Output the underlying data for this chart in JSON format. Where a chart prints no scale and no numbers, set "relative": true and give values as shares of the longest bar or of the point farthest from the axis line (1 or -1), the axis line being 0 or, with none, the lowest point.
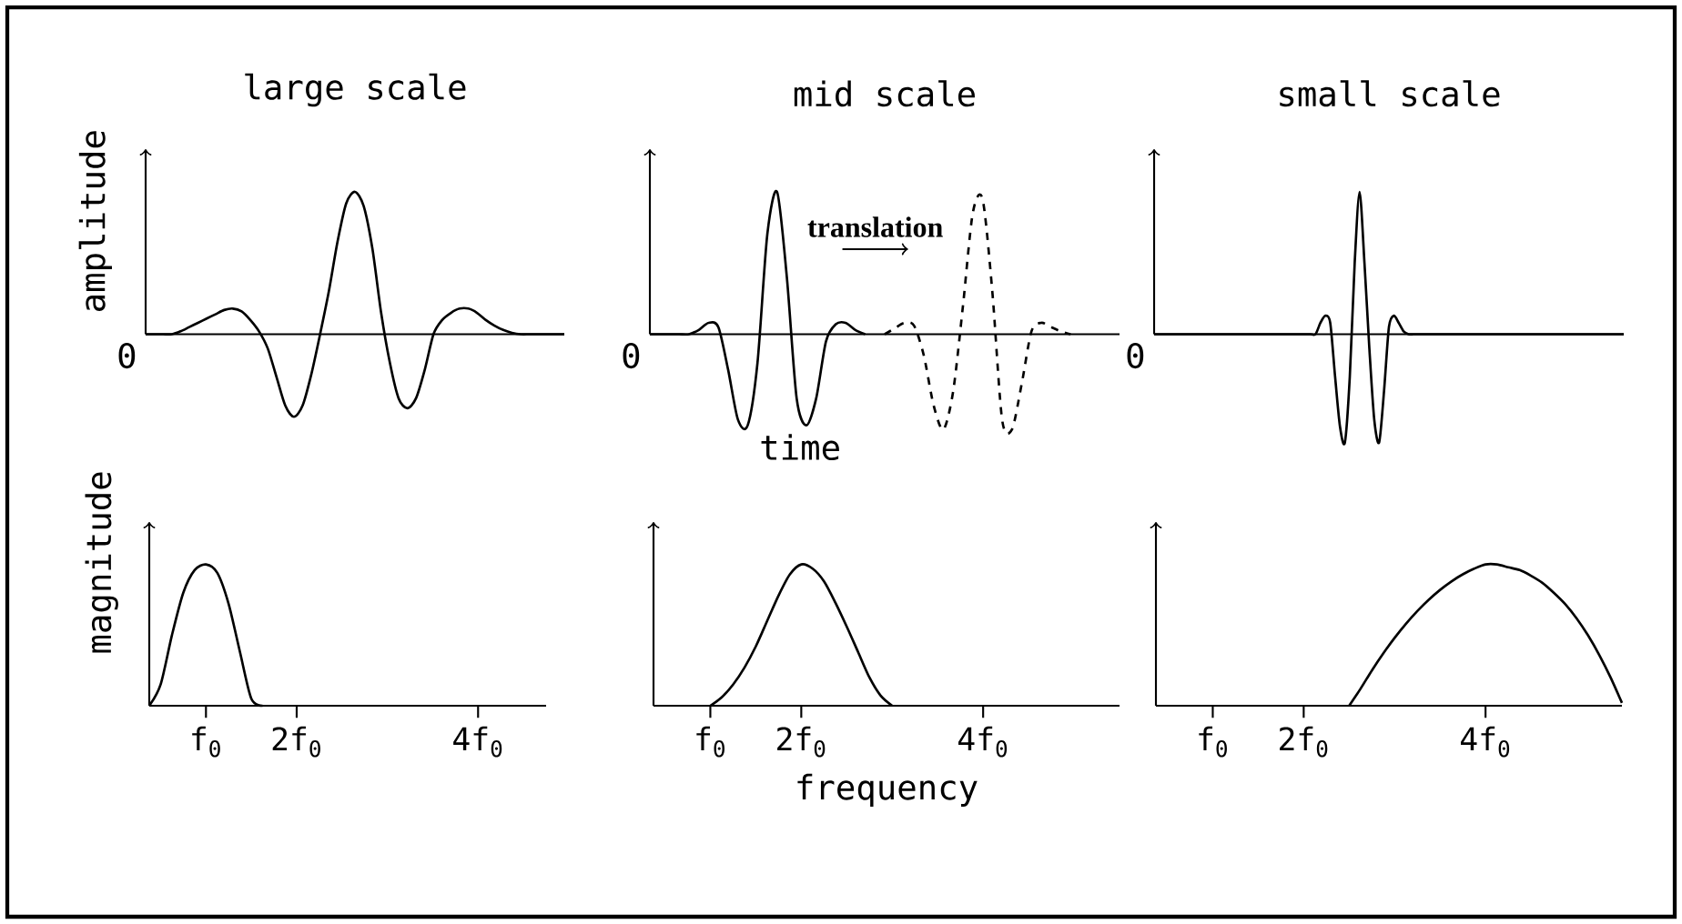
{
  "chart_data": [
    {
      "type": "line",
      "title": "large scale",
      "ylabel": "amplitude",
      "relative": true,
      "annotations": [
        "0"
      ],
      "categories": [
        null,
        null,
        null,
        null,
        null,
        null,
        null,
        null,
        null,
        null,
        null,
        null,
        null,
        null,
        null,
        null,
        null,
        null,
        null,
        null,
        null,
        null,
        null,
        null,
        null,
        null,
        null,
        null,
        null,
        null,
        null,
        null,
        null,
        null,
        null,
        null,
        null,
        null,
        null,
        null,
        null,
        null,
        null,
        null,
        null,
        null,
        null,
        null,
        null
      ],
      "series": [
        {
          "color": "#000000",
          "line_style": "solid",
          "values": [
            0,
            0,
            0,
            0,
            0.02,
            0.05,
            0.08,
            0.11,
            0.14,
            0.17,
            0.18,
            0.16,
            0.1,
            0.02,
            -0.1,
            -0.3,
            -0.5,
            -0.58,
            -0.5,
            -0.28,
            0,
            0.3,
            0.65,
            0.92,
            1,
            0.9,
            0.6,
            0.15,
            -0.2,
            -0.45,
            -0.52,
            -0.45,
            -0.25,
            0,
            0.1,
            0.15,
            0.18,
            0.18,
            0.15,
            0.1,
            0.06,
            0.03,
            0.01,
            0,
            0,
            0,
            0,
            0,
            0
          ]
        }
      ]
    },
    {
      "type": "line",
      "title": "mid scale",
      "xlabel": "time",
      "relative": true,
      "annotations": [
        "0",
        "translation"
      ],
      "categories": [
        null,
        null,
        null,
        null,
        null,
        null,
        null,
        null,
        null,
        null,
        null,
        null,
        null,
        null,
        null,
        null,
        null,
        null,
        null,
        null,
        null,
        null,
        null,
        null,
        null,
        null,
        null,
        null,
        null,
        null,
        null,
        null,
        null,
        null,
        null,
        null,
        null,
        null,
        null,
        null,
        null,
        null,
        null,
        null,
        null,
        null,
        null,
        null,
        null
      ],
      "series": [
        {
          "color": "#000000",
          "line_style": "solid",
          "values": [
            0,
            0,
            0,
            0,
            0,
            0.03,
            0.08,
            0.05,
            -0.25,
            -0.6,
            -0.64,
            -0.2,
            0.7,
            1,
            0.4,
            -0.45,
            -0.64,
            -0.45,
            -0.05,
            0.07,
            0.08,
            0.03,
            0,
            null,
            null,
            null,
            null,
            null,
            null,
            null,
            null,
            null,
            null,
            null,
            null,
            null,
            null,
            null,
            null,
            null,
            null,
            null,
            null,
            null,
            null,
            null,
            null,
            null,
            null
          ]
        },
        {
          "color": "#000000",
          "line_style": "dashed",
          "values": [
            null,
            null,
            null,
            null,
            null,
            null,
            null,
            null,
            null,
            null,
            null,
            null,
            null,
            null,
            null,
            null,
            null,
            null,
            null,
            null,
            null,
            null,
            null,
            null,
            0,
            0.04,
            0.08,
            0.06,
            -0.15,
            -0.5,
            -0.67,
            -0.4,
            0.2,
            0.85,
            0.95,
            0.3,
            -0.6,
            -0.67,
            -0.35,
            0.02,
            0.08,
            0.05,
            0.02,
            0,
            null,
            null,
            null,
            null,
            null
          ]
        }
      ]
    },
    {
      "type": "line",
      "title": "small scale",
      "relative": true,
      "annotations": [
        "0"
      ],
      "categories": [
        null,
        null,
        null,
        null,
        null,
        null,
        null,
        null,
        null,
        null,
        null,
        null,
        null,
        null,
        null,
        null,
        null,
        null,
        null,
        null,
        null,
        null,
        null,
        null,
        null,
        null,
        null,
        null,
        null,
        null,
        null,
        null,
        null,
        null,
        null,
        null,
        null,
        null,
        null,
        null,
        null,
        null,
        null,
        null,
        null,
        null,
        null,
        null,
        null,
        null,
        null,
        null,
        null,
        null,
        null,
        null,
        null,
        null,
        null,
        null,
        null,
        null,
        null,
        null,
        null,
        null,
        null,
        null,
        null,
        null,
        null,
        null,
        null,
        null,
        null,
        null,
        null,
        null,
        null,
        null,
        null,
        null,
        null,
        null,
        null,
        null,
        null,
        null,
        null,
        null,
        null,
        null,
        null,
        null,
        null,
        null,
        null
      ],
      "series": [
        {
          "color": "#000000",
          "line_style": "solid",
          "values": [
            0,
            0,
            0,
            0,
            0,
            0,
            0,
            0,
            0,
            0,
            0,
            0,
            0,
            0,
            0,
            0,
            0,
            0,
            0,
            0,
            0,
            0,
            0,
            0,
            0,
            0,
            0,
            0,
            0,
            0,
            0,
            0,
            0,
            0,
            0.08,
            0.13,
            0.08,
            -0.3,
            -0.65,
            -0.76,
            -0.3,
            0.5,
            1,
            0.5,
            -0.1,
            -0.6,
            -0.76,
            -0.4,
            0.05,
            0.13,
            0.08,
            0.02,
            0,
            0,
            0,
            0,
            0,
            0,
            0,
            0,
            0,
            0,
            0,
            0,
            0,
            0,
            0,
            0,
            0,
            0,
            0,
            0,
            0,
            0,
            0,
            0,
            0,
            0,
            0,
            0,
            0,
            0,
            0,
            0,
            0,
            0,
            0,
            0,
            0,
            0,
            0,
            0,
            0,
            0,
            0,
            0,
            0
          ]
        }
      ]
    },
    {
      "type": "line",
      "ylabel": "magnitude",
      "relative": true,
      "color": "#000000",
      "categories": [
        null,
        null,
        null,
        null,
        null,
        "f$_{0}$",
        null,
        null,
        null,
        null,
        null,
        null,
        null,
        "2f$_{0}$",
        null,
        null,
        null,
        null,
        null,
        null,
        null,
        null,
        null,
        null,
        null,
        null,
        null,
        null,
        null,
        "4f$_{0}$",
        null,
        null,
        null,
        null,
        null,
        null
      ],
      "values": [
        0,
        0.15,
        0.5,
        0.8,
        0.96,
        1,
        0.94,
        0.72,
        0.38,
        0.05,
        0,
        null,
        null,
        null,
        null,
        null,
        null,
        null,
        null,
        null,
        null,
        null,
        null,
        null,
        null,
        null,
        null,
        null,
        null,
        null,
        null,
        null,
        null,
        null,
        null,
        null
      ]
    },
    {
      "type": "line",
      "xlabel": "frequency",
      "relative": true,
      "color": "#000000",
      "categories": [
        null,
        null,
        null,
        null,
        null,
        "f$_{0}$",
        null,
        null,
        null,
        null,
        null,
        null,
        null,
        "2f$_{0}$",
        null,
        null,
        null,
        null,
        null,
        null,
        null,
        null,
        null,
        null,
        null,
        null,
        null,
        null,
        null,
        "4f$_{0}$",
        null,
        null,
        null,
        null,
        null,
        null,
        null,
        null,
        null,
        null,
        null,
        null
      ],
      "values": [
        null,
        null,
        null,
        null,
        null,
        0,
        0.06,
        0.15,
        0.27,
        0.42,
        0.6,
        0.78,
        0.93,
        1,
        0.97,
        0.88,
        0.73,
        0.56,
        0.38,
        0.2,
        0.07,
        0,
        null,
        null,
        null,
        null,
        null,
        null,
        null,
        null,
        null,
        null,
        null,
        null,
        null,
        null,
        null,
        null,
        null,
        null,
        null,
        null
      ]
    },
    {
      "type": "line",
      "relative": true,
      "color": "#000000",
      "categories": [
        null,
        null,
        null,
        null,
        null,
        "f$_{0}$",
        null,
        null,
        null,
        null,
        null,
        null,
        null,
        "2f$_{0}$",
        null,
        null,
        null,
        null,
        null,
        null,
        null,
        null,
        null,
        null,
        null,
        null,
        null,
        null,
        null,
        "4f$_{0}$",
        null,
        null,
        null,
        null,
        null,
        null,
        null,
        null,
        null,
        null,
        null,
        null
      ],
      "values": [
        null,
        null,
        null,
        null,
        null,
        null,
        null,
        null,
        null,
        null,
        null,
        null,
        null,
        null,
        null,
        null,
        null,
        0,
        0.12,
        0.25,
        0.37,
        0.48,
        0.58,
        0.67,
        0.75,
        0.82,
        0.88,
        0.93,
        0.97,
        1,
        1,
        0.98,
        0.96,
        0.92,
        0.87,
        0.8,
        0.72,
        0.62,
        0.5,
        0.36,
        0.2,
        0.02
      ]
    }
  ]
}
